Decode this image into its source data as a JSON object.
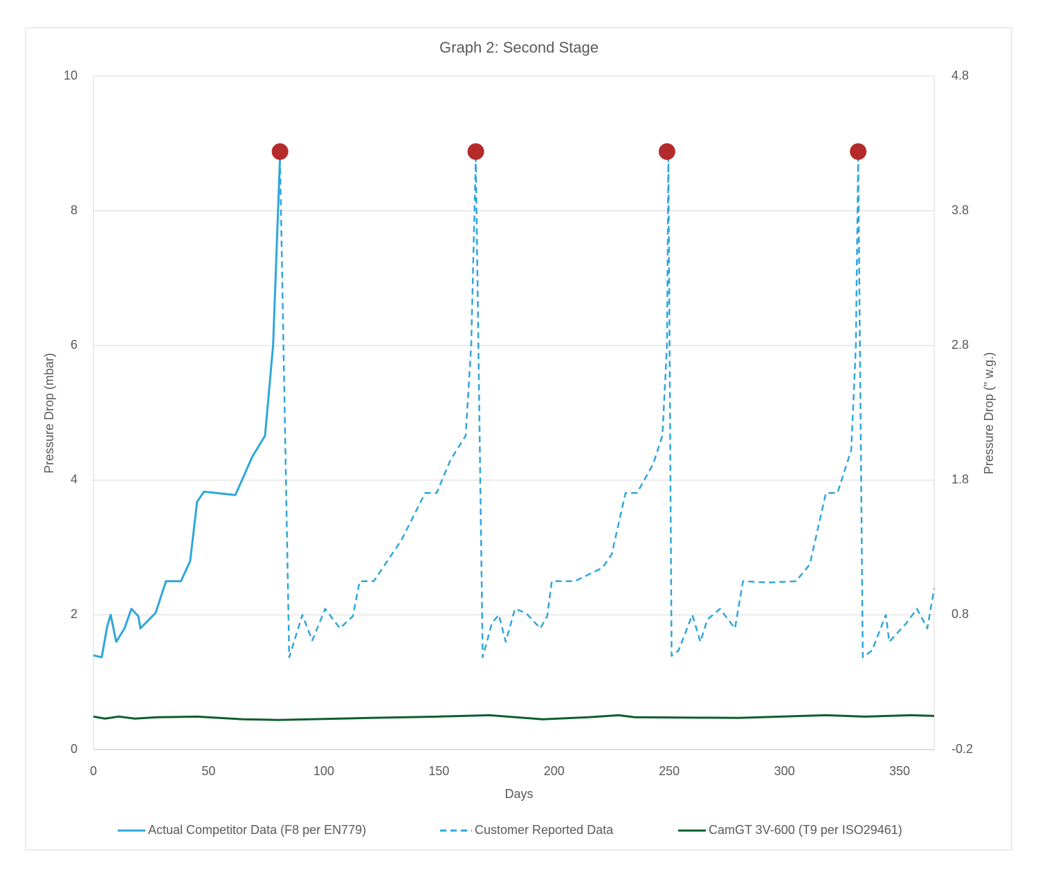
{
  "chart_data": {
    "type": "line",
    "title": "Graph 2: Second Stage",
    "x_label": "Days",
    "y_label": "Pressure Drop (mbar)",
    "y2_label": "Pressure Drop (\" w.g.)",
    "xlim": [
      0,
      365
    ],
    "xticks": [
      0,
      50,
      100,
      150,
      200,
      250,
      300,
      350
    ],
    "ylim": [
      0,
      10
    ],
    "yticks": [
      0,
      2,
      4,
      6,
      8,
      10
    ],
    "y2lim": [
      -0.2,
      4.8
    ],
    "y2ticks": [
      -0.2,
      0.8,
      1.8,
      2.8,
      3.8,
      4.8
    ],
    "grid": true,
    "legend": "bottom",
    "series": [
      {
        "name": "Actual Competitor Data (F8 per EN779)",
        "color": "#2ea6dc",
        "dashed": false,
        "x": [
          0,
          3.6,
          6,
          7.5,
          9.9,
          13.5,
          16.5,
          19.5,
          20.4,
          27,
          31.5,
          34.5,
          38,
          42,
          45,
          48,
          61.6,
          65,
          69,
          74.5,
          78,
          81
        ],
        "values": [
          1.4,
          1.37,
          1.83,
          2.0,
          1.6,
          1.8,
          2.09,
          1.98,
          1.8,
          2.03,
          2.5,
          2.5,
          2.5,
          2.8,
          3.68,
          3.83,
          3.78,
          4.04,
          4.35,
          4.66,
          6.0,
          8.79
        ]
      },
      {
        "name": "Customer Reported Data",
        "color": "#2ea6dc",
        "dashed": true,
        "x": [
          81,
          85,
          90.7,
          95,
          100.6,
          107,
          112.6,
          115.6,
          121.7,
          133.7,
          144,
          149,
          155,
          161.6,
          164,
          166,
          169,
          173,
          176,
          179,
          183,
          187.7,
          194,
          197,
          199,
          209,
          221,
          225,
          231,
          236,
          243,
          247,
          249,
          249.6,
          251,
          254,
          260,
          263.5,
          266.5,
          272,
          278.5,
          282,
          293,
          305,
          311,
          318,
          323,
          329,
          331,
          332,
          334,
          338,
          344,
          345.5,
          353,
          357.5,
          362,
          365
        ],
        "values": [
          8.79,
          1.37,
          2.0,
          1.62,
          2.09,
          1.8,
          1.98,
          2.5,
          2.5,
          3.11,
          3.81,
          3.81,
          4.3,
          4.66,
          6.0,
          8.79,
          1.37,
          1.88,
          2.0,
          1.6,
          2.09,
          2.03,
          1.8,
          1.98,
          2.5,
          2.5,
          2.7,
          2.9,
          3.81,
          3.81,
          4.24,
          4.66,
          6.0,
          8.79,
          1.39,
          1.47,
          2.0,
          1.6,
          1.93,
          2.09,
          1.8,
          2.5,
          2.48,
          2.5,
          2.75,
          3.81,
          3.81,
          4.45,
          6.0,
          8.79,
          1.37,
          1.47,
          2.0,
          1.6,
          1.88,
          2.09,
          1.8,
          2.39
        ]
      },
      {
        "name": "CamGT 3V-600 (T9 per ISO29461)",
        "color": "#0b5e2e",
        "dashed": false,
        "x": [
          0,
          5,
          11,
          18,
          28,
          45,
          65,
          80,
          120,
          150,
          172,
          195,
          215,
          228,
          235,
          280,
          318,
          335,
          355,
          365
        ],
        "values": [
          0.49,
          0.46,
          0.49,
          0.46,
          0.48,
          0.49,
          0.45,
          0.44,
          0.47,
          0.49,
          0.51,
          0.45,
          0.48,
          0.51,
          0.48,
          0.47,
          0.51,
          0.49,
          0.51,
          0.5
        ]
      }
    ],
    "markers": {
      "color": "#b52a2a",
      "x": [
        81,
        166,
        249,
        332
      ],
      "values": [
        8.88,
        8.88,
        8.88,
        8.88
      ]
    }
  }
}
